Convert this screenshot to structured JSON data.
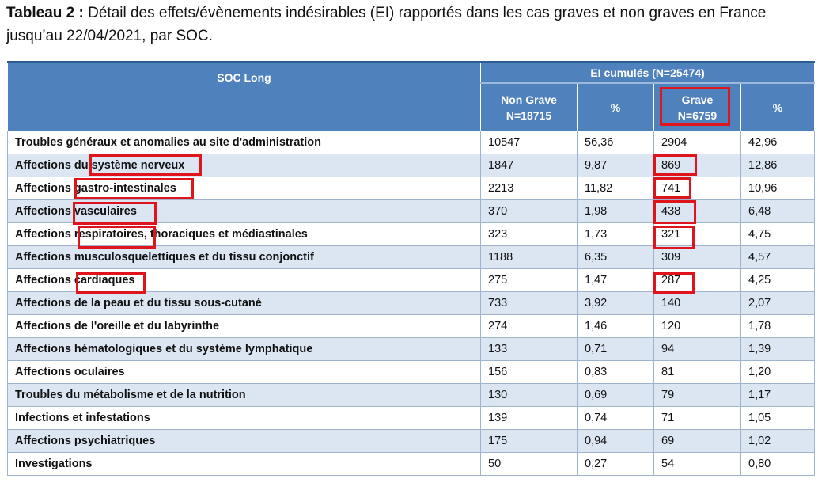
{
  "caption": {
    "prefix": "Tableau 2 :",
    "text": " Détail des effets/évènements indésirables (EI) rapportés dans les cas graves et non graves en France jusqu’au 22/04/2021, par SOC."
  },
  "table": {
    "group_header": "EI cumulés (N=25474)",
    "col_soc": "SOC Long",
    "col_non_grave_line1": "Non Grave",
    "col_non_grave_line2": "N=18715",
    "col_pct1": "%",
    "col_grave_line1": "Grave",
    "col_grave_line2": "N=6759",
    "col_pct2": "%",
    "rows": [
      {
        "soc": "Troubles généraux et anomalies au site d'administration",
        "non_grave": "10547",
        "pct_ng": "56,36",
        "grave": "2904",
        "pct_g": "42,96"
      },
      {
        "soc": "Affections du système nerveux",
        "non_grave": "1847",
        "pct_ng": "9,87",
        "grave": "869",
        "pct_g": "12,86"
      },
      {
        "soc": "Affections gastro-intestinales",
        "non_grave": "2213",
        "pct_ng": "11,82",
        "grave": "741",
        "pct_g": "10,96"
      },
      {
        "soc": "Affections vasculaires",
        "non_grave": "370",
        "pct_ng": "1,98",
        "grave": "438",
        "pct_g": "6,48"
      },
      {
        "soc": "Affections respiratoires, thoraciques et médiastinales",
        "non_grave": "323",
        "pct_ng": "1,73",
        "grave": "321",
        "pct_g": "4,75"
      },
      {
        "soc": "Affections musculosquelettiques et du tissu conjonctif",
        "non_grave": "1188",
        "pct_ng": "6,35",
        "grave": "309",
        "pct_g": "4,57"
      },
      {
        "soc": "Affections cardiaques",
        "non_grave": "275",
        "pct_ng": "1,47",
        "grave": "287",
        "pct_g": "4,25"
      },
      {
        "soc": "Affections de la peau et du tissu sous-cutané",
        "non_grave": "733",
        "pct_ng": "3,92",
        "grave": "140",
        "pct_g": "2,07"
      },
      {
        "soc": "Affections de l'oreille et du labyrinthe",
        "non_grave": "274",
        "pct_ng": "1,46",
        "grave": "120",
        "pct_g": "1,78"
      },
      {
        "soc": "Affections hématologiques et du système lymphatique",
        "non_grave": "133",
        "pct_ng": "0,71",
        "grave": "94",
        "pct_g": "1,39"
      },
      {
        "soc": "Affections oculaires",
        "non_grave": "156",
        "pct_ng": "0,83",
        "grave": "81",
        "pct_g": "1,20"
      },
      {
        "soc": "Troubles du métabolisme et de la nutrition",
        "non_grave": "130",
        "pct_ng": "0,69",
        "grave": "79",
        "pct_g": "1,17"
      },
      {
        "soc": "Infections et infestations",
        "non_grave": "139",
        "pct_ng": "0,74",
        "grave": "71",
        "pct_g": "1,05"
      },
      {
        "soc": "Affections psychiatriques",
        "non_grave": "175",
        "pct_ng": "0,94",
        "grave": "69",
        "pct_g": "1,02"
      },
      {
        "soc": "Investigations",
        "non_grave": "50",
        "pct_ng": "0,27",
        "grave": "54",
        "pct_g": "0,80"
      }
    ]
  },
  "colors": {
    "header_bg": "#4f81bd",
    "row_alt_bg": "#dce6f3",
    "highlight": "#e0141c"
  }
}
